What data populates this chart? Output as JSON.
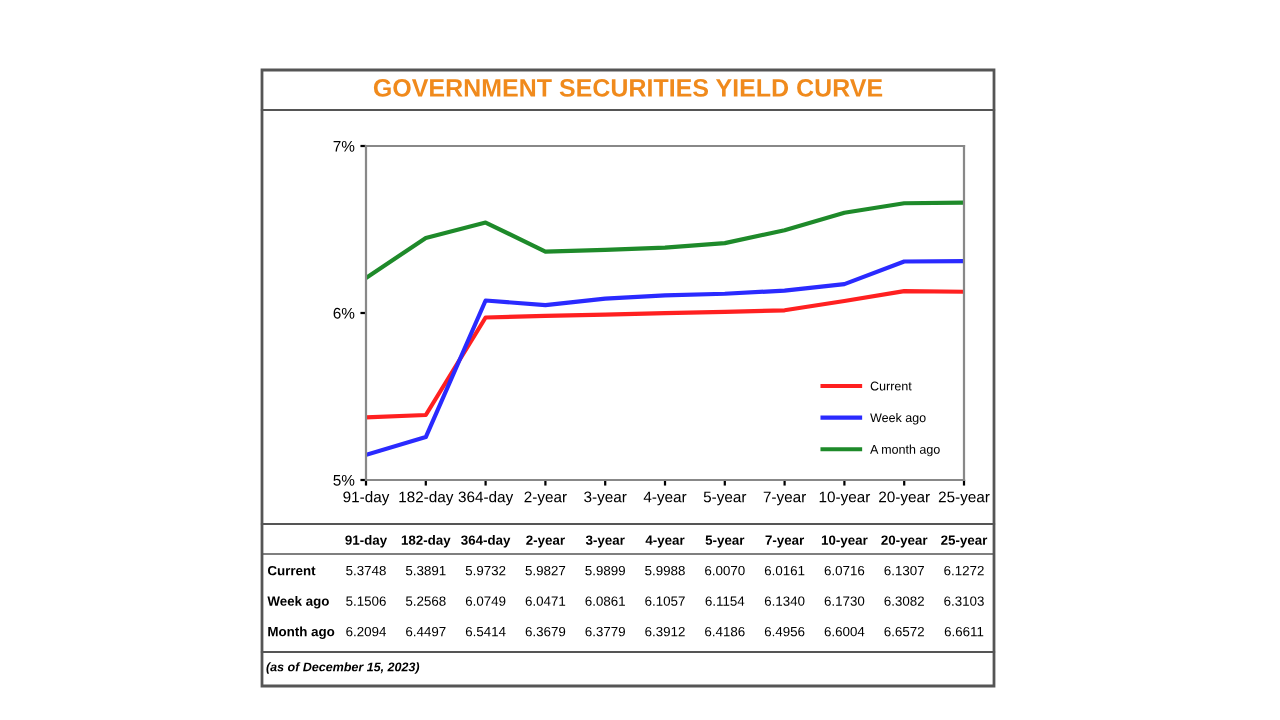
{
  "chart_data": {
    "type": "line",
    "title": "GOVERNMENT SECURITIES YIELD CURVE",
    "categories": [
      "91-day",
      "182-day",
      "364-day",
      "2-year",
      "3-year",
      "4-year",
      "5-year",
      "7-year",
      "10-year",
      "20-year",
      "25-year"
    ],
    "series": [
      {
        "name": "Current",
        "color": "#ff2020",
        "values": [
          5.3748,
          5.3891,
          5.9732,
          5.9827,
          5.9899,
          5.9988,
          6.007,
          6.0161,
          6.0716,
          6.1307,
          6.1272
        ],
        "value_labels": [
          "5.3748",
          "5.3891",
          "5.9732",
          "5.9827",
          "5.9899",
          "5.9988",
          "6.0070",
          "6.0161",
          "6.0716",
          "6.1307",
          "6.1272"
        ]
      },
      {
        "name": "Week ago",
        "color": "#2a2aff",
        "values": [
          5.1506,
          5.2568,
          6.0749,
          6.0471,
          6.0861,
          6.1057,
          6.1154,
          6.134,
          6.173,
          6.3082,
          6.3103
        ],
        "value_labels": [
          "5.1506",
          "5.2568",
          "6.0749",
          "6.0471",
          "6.0861",
          "6.1057",
          "6.1154",
          "6.1340",
          "6.1730",
          "6.3082",
          "6.3103"
        ]
      },
      {
        "name": "A month ago",
        "color": "#1e8a2a",
        "values": [
          6.2094,
          6.4497,
          6.5414,
          6.3679,
          6.3779,
          6.3912,
          6.4186,
          6.4956,
          6.6004,
          6.6572,
          6.6611
        ],
        "value_labels": [
          "6.2094",
          "6.4497",
          "6.5414",
          "6.3679",
          "6.3779",
          "6.3912",
          "6.4186",
          "6.4956",
          "6.6004",
          "6.6572",
          "6.6611"
        ]
      }
    ],
    "ylim": [
      5,
      7
    ],
    "yticks": [
      {
        "value": 5,
        "label": "5%"
      },
      {
        "value": 6,
        "label": "6%"
      },
      {
        "value": 7,
        "label": "7%"
      }
    ],
    "grid": false,
    "legend": "bottom right",
    "marker": "none",
    "line_style": "solid",
    "annotations": [
      "Current",
      "Week ago",
      "Month ago",
      "(as of December 15, 2023)"
    ]
  }
}
